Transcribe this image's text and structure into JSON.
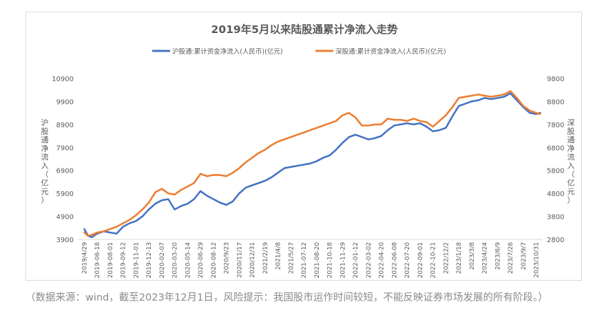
{
  "chart_data": {
    "type": "line",
    "title": "2019年5月以来陆股通累计净流入走势",
    "ylabel_left": "沪股通净流入（亿元）",
    "ylabel_right": "深股通净流入（亿元）",
    "y_left_ticks": [
      "3900",
      "4900",
      "5900",
      "6900",
      "7900",
      "8900",
      "9900",
      "10900"
    ],
    "y_right_ticks": [
      "2800",
      "3800",
      "4800",
      "5800",
      "6800",
      "7800",
      "8800",
      "9800"
    ],
    "ylim_left": [
      3900,
      10900
    ],
    "ylim_right": [
      2800,
      9800
    ],
    "x_tick_labels": [
      "2019/4/29",
      "2019-06-18",
      "2019-08-01",
      "2019-09-12",
      "2019-11-01",
      "2019-12-13",
      "2020-02-07",
      "2020-03-20",
      "2020-05-14",
      "2020-06-29",
      "2020-08-12",
      "2020/9/23",
      "2020/11/17",
      "2020/12/31",
      "2021/2/19",
      "2021/4/8",
      "2021/5/27",
      "2021-07-12",
      "2021-08-20",
      "2021-10-18",
      "2021-11-29",
      "2022-01-12",
      "2022-03-02",
      "2022-04-20",
      "2022-06-08",
      "2022-07-20",
      "2022-09-01",
      "2022-10-21",
      "2022/12/2",
      "2023/1/18",
      "2023/3/8",
      "2023/4/24",
      "2023/6/9",
      "2023/7/26",
      "2023/9/7",
      "2023/10/31"
    ],
    "legend_position": "top",
    "grid": false,
    "series": [
      {
        "name": "沪股通:累计资金净流入(人民币)(亿元)",
        "axis": "left",
        "color": "#4472C4",
        "x_index": [
          0,
          0.3,
          0.6,
          1,
          1.5,
          2,
          2.5,
          3,
          3.5,
          4,
          4.5,
          5,
          5.5,
          6,
          6.5,
          7,
          7.5,
          8,
          8.5,
          9,
          9.5,
          10,
          10.5,
          11,
          11.5,
          12,
          12.5,
          13,
          13.5,
          14,
          14.5,
          15,
          15.5,
          16,
          16.5,
          17,
          17.5,
          18,
          18.5,
          19,
          19.5,
          20,
          20.5,
          21,
          21.5,
          22,
          22.5,
          23,
          23.5,
          24,
          24.5,
          25,
          25.5,
          26,
          26.5,
          27,
          27.5,
          28,
          28.5,
          29,
          29.5,
          30,
          30.5,
          31,
          31.5,
          32,
          32.5,
          33,
          33.5,
          34,
          34.5,
          35,
          35.3
        ],
        "values": [
          4350,
          4050,
          4000,
          4150,
          4250,
          4200,
          4150,
          4450,
          4600,
          4700,
          4900,
          5200,
          5450,
          5600,
          5650,
          5200,
          5350,
          5450,
          5650,
          6000,
          5800,
          5650,
          5500,
          5400,
          5550,
          5900,
          6150,
          6250,
          6350,
          6450,
          6600,
          6800,
          7000,
          7050,
          7100,
          7150,
          7200,
          7300,
          7450,
          7550,
          7800,
          8100,
          8350,
          8450,
          8350,
          8250,
          8300,
          8400,
          8650,
          8850,
          8900,
          8950,
          8900,
          8950,
          8800,
          8600,
          8650,
          8750,
          9250,
          9700,
          9800,
          9900,
          9950,
          10050,
          10000,
          10050,
          10100,
          10250,
          9950,
          9650,
          9400,
          9350,
          9400
        ]
      },
      {
        "name": "深股通:累计资金净流入(人民币)(亿元)",
        "axis": "right",
        "color": "#ED7D31",
        "x_index": [
          0,
          0.3,
          0.6,
          1,
          1.5,
          2,
          2.5,
          3,
          3.5,
          4,
          4.5,
          5,
          5.5,
          6,
          6.5,
          7,
          7.5,
          8,
          8.5,
          9,
          9.5,
          10,
          10.5,
          11,
          11.5,
          12,
          12.5,
          13,
          13.5,
          14,
          14.5,
          15,
          15.5,
          16,
          16.5,
          17,
          17.5,
          18,
          18.5,
          19,
          19.5,
          20,
          20.5,
          21,
          21.5,
          22,
          22.5,
          23,
          23.5,
          24,
          24.5,
          25,
          25.5,
          26,
          26.5,
          27,
          27.5,
          28,
          28.5,
          29,
          29.5,
          30,
          30.5,
          31,
          31.5,
          32,
          32.5,
          33,
          33.5,
          34,
          34.5,
          35,
          35.3
        ],
        "values": [
          3100,
          2950,
          3000,
          3100,
          3150,
          3250,
          3350,
          3500,
          3650,
          3850,
          4100,
          4400,
          4850,
          5000,
          4800,
          4750,
          4950,
          5100,
          5250,
          5650,
          5550,
          5600,
          5600,
          5550,
          5700,
          5900,
          6150,
          6350,
          6550,
          6700,
          6900,
          7050,
          7150,
          7250,
          7350,
          7450,
          7550,
          7650,
          7750,
          7850,
          7950,
          8200,
          8300,
          8100,
          7750,
          7750,
          7800,
          7800,
          8050,
          8000,
          8000,
          7950,
          8050,
          7950,
          7900,
          7700,
          7950,
          8200,
          8550,
          8950,
          9000,
          9050,
          9100,
          9050,
          9000,
          9050,
          9100,
          9250,
          8950,
          8600,
          8400,
          8300,
          8250
        ]
      }
    ]
  },
  "caption": "（数据来源：wind，截至2023年12月1日，风险提示：我国股市运作时间较短，不能反映证券市场发展的所有阶段。）"
}
